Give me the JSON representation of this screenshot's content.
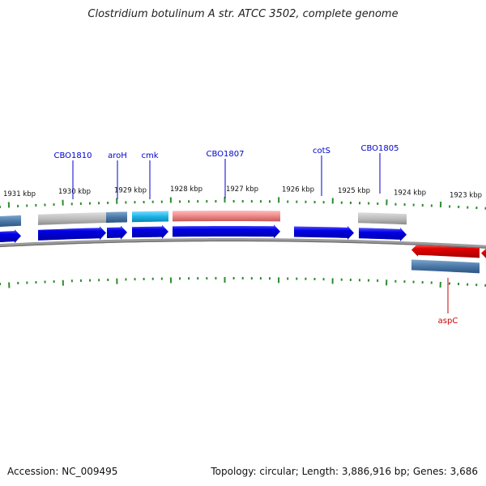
{
  "title": "Clostridium botulinum A str. ATCC 3502, complete genome",
  "footer": {
    "accession": "Accession: NC_009495",
    "summary": "Topology: circular; Length: 3,886,916 bp; Genes: 3,686"
  },
  "colors": {
    "backbone": "#808080",
    "tick": "#2e8b2e",
    "label_forward": "#0000cc",
    "label_reverse": "#cc0000",
    "cds_forward": "#0000e6",
    "cds_reverse": "#e60000",
    "feature_gray": "#b8b8b8",
    "feature_steel": "#4a78a8",
    "feature_cyan": "#1ab4e6",
    "feature_pink": "#ee8888"
  },
  "ruler": {
    "labels": [
      "1931 kbp",
      "1930 kbp",
      "1929 kbp",
      "1928 kbp",
      "1927 kbp",
      "1926 kbp",
      "1925 kbp",
      "1924 kbp",
      "1923 kbp"
    ]
  },
  "features": {
    "outer_track": [
      {
        "type": "steel"
      },
      {
        "type": "gray"
      },
      {
        "type": "steel"
      },
      {
        "type": "cyan"
      },
      {
        "type": "pink"
      },
      {
        "type": "gray"
      }
    ],
    "forward_cds": [
      {
        "label": ""
      },
      {
        "label": "CBO1810"
      },
      {
        "label": "aroH"
      },
      {
        "label": "cmk"
      },
      {
        "label": "CBO1807"
      },
      {
        "label": "cotS"
      },
      {
        "label": "CBO1805"
      }
    ],
    "reverse_cds": [
      {
        "label": "aspC"
      },
      {
        "label": ""
      }
    ],
    "reverse_outer": [
      {
        "type": "steel"
      }
    ]
  },
  "gene_labels": [
    {
      "name": "CBO1810",
      "strand": "forward"
    },
    {
      "name": "aroH",
      "strand": "forward"
    },
    {
      "name": "cmk",
      "strand": "forward"
    },
    {
      "name": "CBO1807",
      "strand": "forward"
    },
    {
      "name": "cotS",
      "strand": "forward"
    },
    {
      "name": "CBO1805",
      "strand": "forward"
    },
    {
      "name": "aspC",
      "strand": "reverse"
    }
  ]
}
